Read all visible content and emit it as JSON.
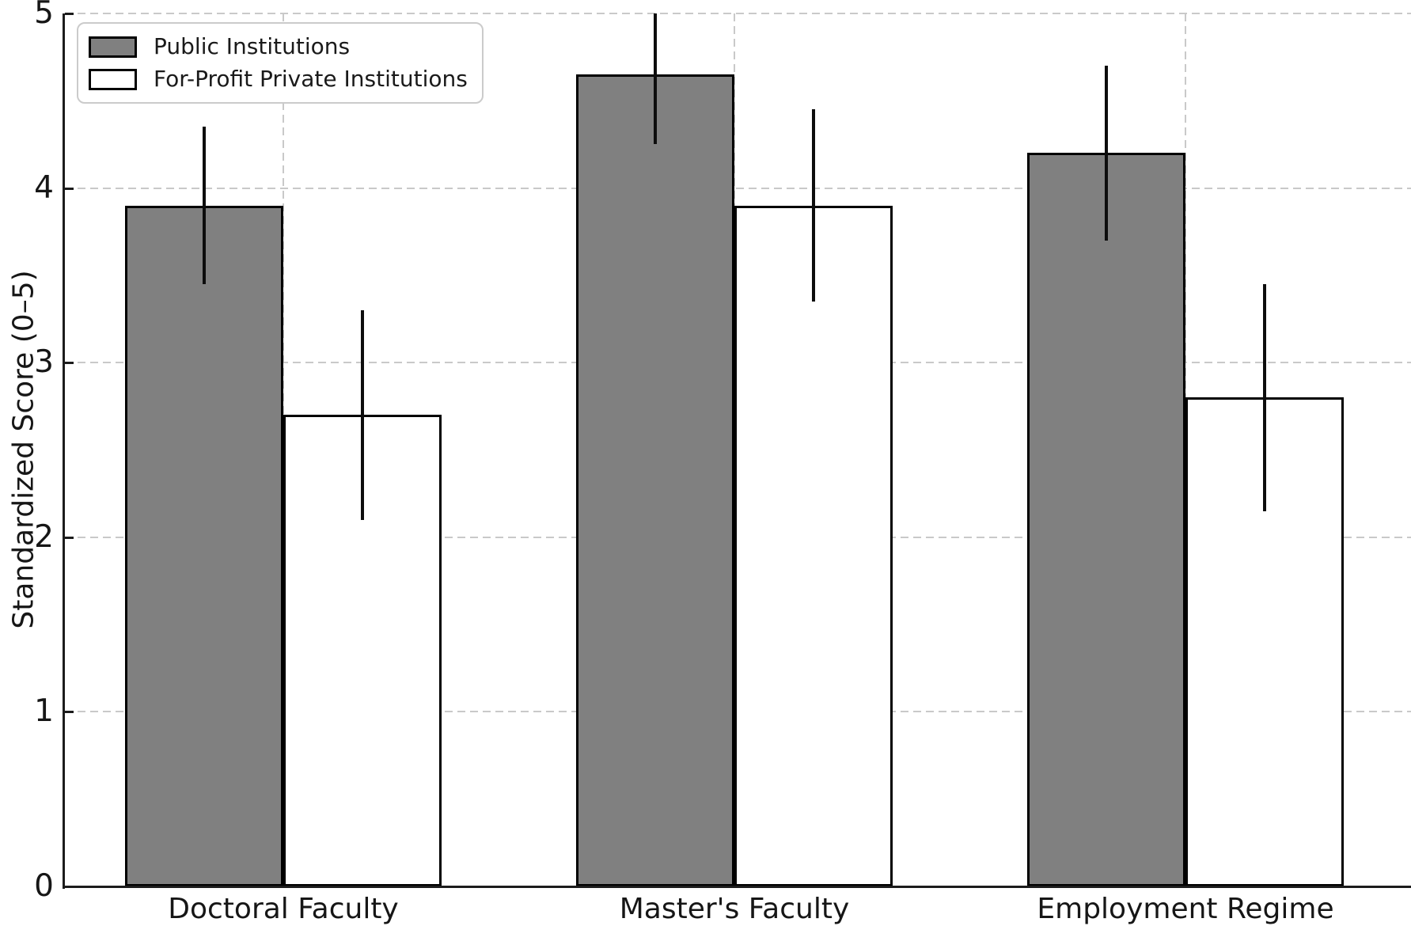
{
  "chart_data": {
    "type": "bar",
    "title": "",
    "xlabel": "",
    "ylabel": "Standardized Score (0–5)",
    "ylim": [
      0,
      5
    ],
    "yticks": [
      0,
      1,
      2,
      3,
      4,
      5
    ],
    "grid": "dashed horizontal and vertical gridlines at ticks",
    "legend_position": "upper left",
    "categories": [
      "Doctoral Faculty",
      "Master's Faculty",
      "Employment Regime"
    ],
    "series": [
      {
        "name": "Public Institutions",
        "fill": "#808080",
        "edge": "#000000",
        "values": [
          3.9,
          4.65,
          4.2
        ],
        "errors": [
          0.45,
          0.4,
          0.5
        ]
      },
      {
        "name": "For-Profit Private Institutions",
        "fill": "#ffffff",
        "edge": "#000000",
        "values": [
          2.7,
          3.9,
          2.8
        ],
        "errors": [
          0.6,
          0.55,
          0.65
        ]
      }
    ]
  },
  "legend": {
    "items": [
      {
        "label": "Public Institutions",
        "fill": "#808080"
      },
      {
        "label": "For-Profit Private Institutions",
        "fill": "#ffffff"
      }
    ]
  },
  "colors": {
    "grid": "#c9c9c9",
    "spine": "#1c1c1c",
    "error_bar": "#0d0d0d",
    "text": "#161616",
    "background": "#ffffff"
  }
}
